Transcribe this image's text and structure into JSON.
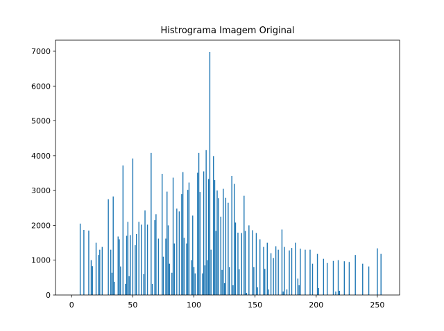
{
  "chart_data": {
    "type": "bar",
    "title": "Histrograma Imagem Original",
    "color": "#1f77b4",
    "x": [
      7,
      10,
      14,
      16,
      17,
      20,
      22,
      23,
      25,
      30,
      32,
      33,
      34,
      35,
      38,
      39,
      40,
      42,
      44,
      45,
      46,
      47,
      48,
      50,
      52,
      53,
      55,
      57,
      59,
      60,
      62,
      65,
      66,
      68,
      69,
      71,
      74,
      75,
      77,
      78,
      79,
      80,
      82,
      83,
      84,
      86,
      88,
      90,
      91,
      92,
      94,
      95,
      96,
      98,
      99,
      100,
      101,
      103,
      104,
      105,
      107,
      108,
      109,
      110,
      111,
      112,
      113,
      114,
      116,
      117,
      118,
      119,
      120,
      122,
      123,
      124,
      125,
      126,
      128,
      129,
      131,
      132,
      133,
      134,
      136,
      137,
      139,
      141,
      142,
      143,
      145,
      148,
      149,
      151,
      152,
      154,
      157,
      158,
      160,
      161,
      163,
      165,
      167,
      169,
      172,
      173,
      174,
      176,
      178,
      180,
      183,
      185,
      186,
      187,
      191,
      195,
      197,
      201,
      202,
      206,
      209,
      214,
      216,
      218,
      219,
      223,
      227,
      232,
      238,
      243,
      250,
      253
    ],
    "values": [
      2050,
      1870,
      1850,
      1000,
      830,
      1500,
      1150,
      1300,
      1380,
      2750,
      1300,
      640,
      2830,
      380,
      1680,
      1600,
      820,
      3720,
      320,
      1700,
      2100,
      540,
      1720,
      3920,
      1430,
      1750,
      2100,
      2020,
      600,
      2430,
      2020,
      4080,
      320,
      2150,
      2320,
      1620,
      3480,
      1100,
      1620,
      2970,
      2000,
      900,
      640,
      3370,
      1480,
      2480,
      2400,
      2900,
      3530,
      1640,
      1480,
      3020,
      3230,
      1000,
      2280,
      800,
      620,
      3510,
      4080,
      2960,
      620,
      3550,
      850,
      4160,
      1000,
      3330,
      6980,
      1300,
      3990,
      3300,
      1840,
      3000,
      2780,
      2250,
      720,
      3050,
      340,
      2790,
      2650,
      800,
      3420,
      280,
      3190,
      2080,
      1790,
      740,
      1780,
      2850,
      1840,
      60,
      2000,
      1860,
      800,
      1780,
      220,
      1600,
      1380,
      750,
      1500,
      160,
      1200,
      1060,
      1400,
      1300,
      1880,
      100,
      1380,
      160,
      1280,
      1350,
      1500,
      470,
      280,
      1330,
      1300,
      1300,
      900,
      1180,
      200,
      1040,
      920,
      980,
      100,
      1000,
      120,
      970,
      950,
      1150,
      900,
      820,
      1340,
      1180
    ],
    "xlim": [
      -13.2,
      268.2
    ],
    "xticks": [
      0,
      50,
      100,
      150,
      200,
      250
    ],
    "ylim": [
      0,
      7318
    ],
    "yticks": [
      0,
      1000,
      2000,
      3000,
      4000,
      5000,
      6000,
      7000
    ]
  }
}
